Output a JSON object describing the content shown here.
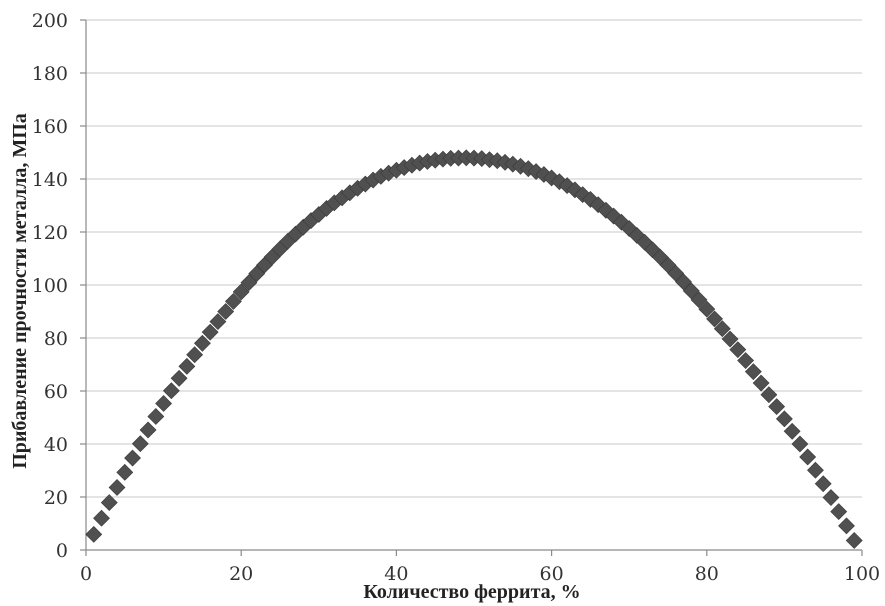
{
  "chart_data": {
    "type": "scatter",
    "title": "",
    "xlabel": "Количество феррита, %",
    "ylabel": "Прибавление прочности металла, МПа",
    "xlim": [
      0,
      100
    ],
    "ylim": [
      0,
      200
    ],
    "x_ticks": [
      "0",
      "20",
      "40",
      "60",
      "80",
      "100"
    ],
    "y_ticks": [
      "0",
      "20",
      "40",
      "60",
      "80",
      "100",
      "120",
      "140",
      "160",
      "180",
      "200"
    ],
    "grid": "horizontal",
    "marker": "diamond",
    "marker_color": "#505050",
    "x": [
      1,
      2,
      3,
      4,
      5,
      6,
      7,
      8,
      9,
      10,
      11,
      12,
      13,
      14,
      15,
      16,
      17,
      18,
      19,
      20,
      21,
      22,
      23,
      24,
      25,
      26,
      27,
      28,
      29,
      30,
      31,
      32,
      33,
      34,
      35,
      36,
      37,
      38,
      39,
      40,
      41,
      42,
      43,
      44,
      45,
      46,
      47,
      48,
      49,
      50,
      51,
      52,
      53,
      54,
      55,
      56,
      57,
      58,
      59,
      60,
      61,
      62,
      63,
      64,
      65,
      66,
      67,
      68,
      69,
      70,
      71,
      72,
      73,
      74,
      75,
      76,
      77,
      78,
      79,
      80,
      81,
      82,
      83,
      84,
      85,
      86,
      87,
      88,
      89,
      90,
      91,
      92,
      93,
      94,
      95,
      96,
      97,
      98,
      99
    ],
    "y": [
      5.9,
      12.0,
      17.9,
      23.6,
      29.3,
      34.7,
      40.1,
      45.3,
      50.4,
      55.3,
      60.1,
      64.8,
      69.3,
      73.7,
      78.0,
      82.2,
      86.2,
      90.0,
      93.8,
      97.4,
      100.9,
      104.3,
      107.5,
      110.6,
      113.6,
      116.5,
      119.2,
      121.8,
      124.3,
      126.6,
      128.9,
      131.0,
      132.9,
      134.8,
      136.5,
      138.1,
      139.6,
      141.0,
      142.2,
      143.3,
      144.3,
      145.2,
      146.0,
      146.6,
      147.1,
      147.5,
      147.8,
      147.9,
      148.0,
      147.9,
      147.7,
      147.3,
      146.9,
      146.3,
      145.6,
      144.8,
      143.9,
      142.8,
      141.7,
      140.4,
      139.0,
      137.5,
      135.9,
      134.1,
      132.3,
      130.3,
      128.2,
      126.0,
      123.7,
      121.3,
      118.7,
      116.1,
      113.3,
      110.5,
      107.5,
      104.4,
      101.2,
      97.8,
      94.4,
      90.9,
      87.2,
      83.5,
      79.6,
      75.6,
      71.5,
      67.3,
      63.0,
      58.6,
      54.1,
      49.5,
      44.8,
      40.0,
      35.1,
      30.1,
      25.0,
      19.8,
      14.5,
      9.1,
      3.6
    ]
  }
}
